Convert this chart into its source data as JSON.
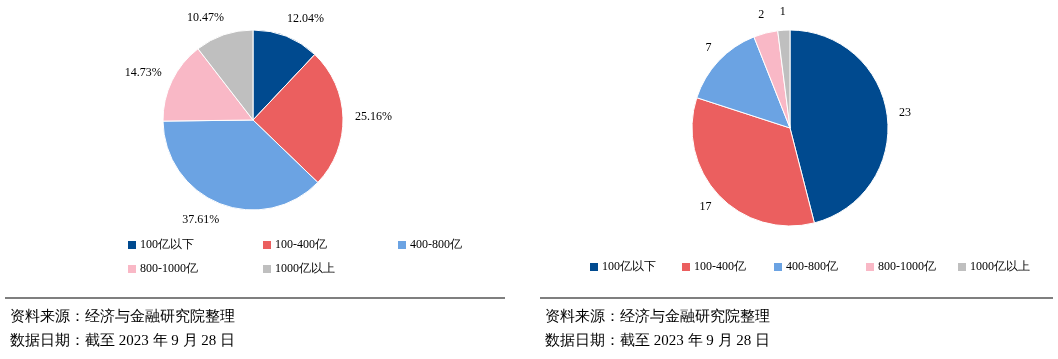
{
  "chart_data": [
    {
      "type": "pie",
      "categories": [
        "100亿以下",
        "100-400亿",
        "400-800亿",
        "800-1000亿",
        "1000亿以上"
      ],
      "values": [
        12.04,
        25.16,
        37.61,
        14.73,
        10.47
      ],
      "value_labels": [
        "12.04%",
        "25.16%",
        "37.61%",
        "14.73%",
        "10.47%"
      ],
      "colors": [
        "#004a8f",
        "#eb5f5f",
        "#6ba3e3",
        "#f9b8c6",
        "#bfbfbf"
      ],
      "legend": "bottom",
      "annotations": [
        "资料来源：经济与金融研究院整理",
        "数据日期：截至 2023 年 9 月 28 日"
      ]
    },
    {
      "type": "pie",
      "categories": [
        "100亿以下",
        "100-400亿",
        "400-800亿",
        "800-1000亿",
        "1000亿以上"
      ],
      "values": [
        23,
        17,
        7,
        2,
        1
      ],
      "data_labels": true,
      "colors": [
        "#004a8f",
        "#eb5f5f",
        "#6ba3e3",
        "#f9b8c6",
        "#bfbfbf"
      ],
      "legend": "bottom",
      "annotations": [
        "资料来源：经济与金融研究院整理",
        "数据日期：截至 2023 年 9 月 28 日"
      ]
    }
  ]
}
